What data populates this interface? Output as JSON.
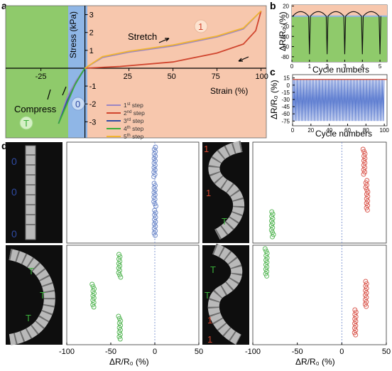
{
  "panel_labels": {
    "a": "a",
    "b": "b",
    "c": "c",
    "d": "d"
  },
  "colors": {
    "compress_region": "#8fca6b",
    "zero_region": "#8fb6e6",
    "stretch_region": "#f7c7ad",
    "step1": "#9a86c4",
    "step2": "#d0452e",
    "step3": "#2f4ba3",
    "step4": "#3aae3a",
    "step5": "#f2b531",
    "blue_marker": "#6a86c9",
    "green_marker": "#52b552",
    "red_marker": "#d9544a"
  },
  "chart_data": [
    {
      "id": "a",
      "type": "line",
      "xlabel": "Strain (%)",
      "ylabel": "Stress (kPa)",
      "xlim": [
        -45,
        103
      ],
      "ylim": [
        -3.9,
        3.5
      ],
      "xticks": [
        -25,
        25,
        50,
        75,
        100
      ],
      "yticks": [
        -3,
        -2,
        -1,
        1,
        2,
        3
      ],
      "annotations": {
        "stretch": "Stretch",
        "compress": "Compress",
        "zero_badge": "0",
        "one_badge": "1",
        "t_badge": "T"
      },
      "legend": [
        {
          "base": "1",
          "sup": "st",
          "rest": " step"
        },
        {
          "base": "2",
          "sup": "nd",
          "rest": " step"
        },
        {
          "base": "3",
          "sup": "rd",
          "rest": " step"
        },
        {
          "base": "4",
          "sup": "th",
          "rest": " step"
        },
        {
          "base": "5",
          "sup": "th",
          "rest": " step"
        }
      ],
      "series": [
        {
          "name": "1st step",
          "x": [
            -15,
            -10,
            -5,
            0,
            10,
            25,
            50,
            75,
            90,
            100
          ],
          "y": [
            -3.1,
            -1.6,
            -0.7,
            0,
            0.6,
            0.9,
            1.25,
            1.75,
            2.2,
            3.2
          ]
        },
        {
          "name": "2nd step",
          "x": [
            0,
            20,
            50,
            75,
            90,
            97,
            100
          ],
          "y": [
            0,
            0.1,
            0.35,
            0.85,
            1.35,
            2.1,
            3.2
          ]
        },
        {
          "name": "3rd step",
          "x": [
            -15,
            -10,
            -5,
            0
          ],
          "y": [
            -3.1,
            -1.8,
            -0.8,
            0
          ]
        },
        {
          "name": "4th step",
          "x": [
            -15,
            -11,
            -6,
            -2,
            0
          ],
          "y": [
            -3.1,
            -2.2,
            -1.0,
            -0.3,
            0
          ]
        },
        {
          "name": "5th step",
          "x": [
            0,
            10,
            25,
            50,
            75,
            90,
            100
          ],
          "y": [
            0,
            0.65,
            0.95,
            1.3,
            1.8,
            2.25,
            3.2
          ]
        }
      ]
    },
    {
      "id": "b",
      "type": "line",
      "xlabel": "Cycle numbers",
      "ylabel": "ΔR/R₀ (%)",
      "xlim": [
        0,
        5.4
      ],
      "ylim": [
        -90,
        22
      ],
      "xticks": [
        0,
        1,
        2,
        3,
        4,
        5
      ],
      "yticks": [
        20,
        0,
        -20,
        -40,
        -60,
        -80
      ],
      "series": [
        {
          "name": "stretch",
          "x": [
            0,
            0.25,
            0.5,
            0.75,
            1.0,
            1.25,
            1.5,
            1.75,
            2.0,
            2.25,
            2.5,
            2.75,
            3.0,
            3.25,
            3.5,
            3.75,
            4.0,
            4.25,
            4.5,
            4.75,
            5.0,
            5.25
          ],
          "y": [
            0,
            12,
            0,
            12,
            0,
            12,
            0,
            12,
            0,
            12,
            0,
            12,
            0,
            12,
            0,
            12,
            0,
            12,
            0,
            12,
            0,
            12
          ]
        },
        {
          "name": "compress",
          "x": [
            0.95,
            1.0,
            1.05,
            1.95,
            2.0,
            2.05,
            2.95,
            3.0,
            3.05,
            3.95,
            4.0,
            4.05,
            4.95,
            5.0,
            5.05
          ],
          "y": [
            0,
            -75,
            0,
            0,
            -75,
            0,
            0,
            -75,
            0,
            0,
            -75,
            0,
            0,
            -75,
            0
          ]
        }
      ]
    },
    {
      "id": "c",
      "type": "line",
      "xlabel": "Cycle numbers",
      "ylabel": "ΔR/R₀ (%)",
      "xlim": [
        0,
        103
      ],
      "ylim": [
        -85,
        22
      ],
      "xticks": [
        0,
        20,
        40,
        60,
        80,
        100
      ],
      "yticks": [
        15,
        0,
        -15,
        -30,
        -45,
        -60,
        -75
      ],
      "note": "dense oscillation between about +12 and -75 over 100 cycles"
    },
    {
      "id": "d",
      "type": "scatter",
      "xlabel_left": "ΔR/R₀ (%)",
      "xlabel_right": "ΔR/R₀ (%)",
      "xlim": [
        -100,
        50
      ],
      "xticks": [
        -100,
        -50,
        0,
        50
      ],
      "photo_badges": {
        "zero": "0",
        "t": "T",
        "one": "1"
      },
      "plots": [
        {
          "pos": "top-left",
          "clusters": [
            {
              "x": 0,
              "color": "blue"
            },
            {
              "x": 0,
              "color": "blue"
            },
            {
              "x": 0,
              "color": "blue"
            }
          ]
        },
        {
          "pos": "bottom-left",
          "clusters": [
            {
              "x": -40,
              "color": "green"
            },
            {
              "x": -70,
              "color": "green"
            },
            {
              "x": -40,
              "color": "green"
            }
          ]
        },
        {
          "pos": "top-right",
          "clusters": [
            {
              "x": 25,
              "color": "red"
            },
            {
              "x": 28,
              "color": "red"
            },
            {
              "x": -78,
              "color": "green"
            }
          ]
        },
        {
          "pos": "bottom-right",
          "clusters": [
            {
              "x": -85,
              "color": "green"
            },
            {
              "x": 27,
              "color": "red"
            },
            {
              "x": 15,
              "color": "red"
            }
          ]
        }
      ]
    }
  ]
}
